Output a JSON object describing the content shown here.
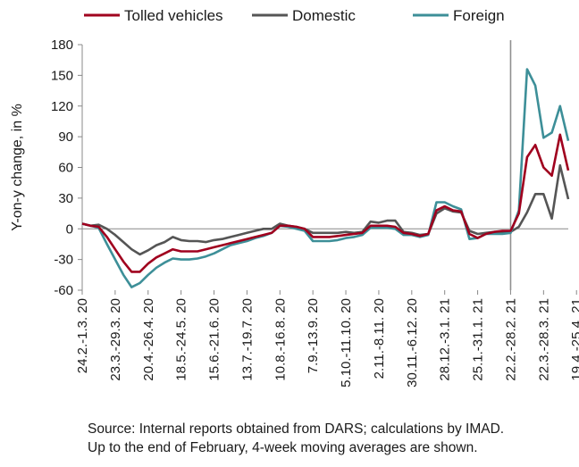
{
  "chart_data": {
    "type": "line",
    "title": "",
    "ylabel": "Y-on-y change, in %",
    "xlabel": "",
    "ylim": [
      -60,
      180
    ],
    "yticks": [
      -60,
      -30,
      0,
      30,
      60,
      90,
      120,
      150,
      180
    ],
    "grid": false,
    "legend_position": "top",
    "x_tick_labels": [
      "24.2.-1.3. 20",
      "23.3.-29.3. 20",
      "20.4.-26.4. 20",
      "18.5.-24.5. 20",
      "15.6.-21.6. 20",
      "13.7.-19.7. 20",
      "10.8.-16.8. 20",
      "7.9.-13.9. 20",
      "5.10.-11.10. 20",
      "2.11.-8.11. 20",
      "30.11.-6.12. 20",
      "28.12.-3.1. 21",
      "25.1.-31.1. 21",
      "22.2.-28.2. 21",
      "22.3.-28.3. 21",
      "19.4.-25.4. 21"
    ],
    "vline_at_week": 52,
    "series": [
      {
        "name": "Tolled vehicles",
        "color": "#a0001e",
        "values": [
          5,
          3,
          2,
          -8,
          -20,
          -32,
          -42,
          -42,
          -34,
          -28,
          -24,
          -20,
          -22,
          -22,
          -22,
          -20,
          -18,
          -16,
          -14,
          -12,
          -10,
          -8,
          -6,
          -4,
          3,
          3,
          2,
          0,
          -8,
          -8,
          -8,
          -7,
          -6,
          -5,
          -4,
          3,
          3,
          3,
          2,
          -4,
          -5,
          -7,
          -5,
          18,
          22,
          18,
          17,
          -5,
          -9,
          -5,
          -3,
          -2,
          -2,
          15,
          70,
          82,
          60,
          52,
          92,
          57
        ]
      },
      {
        "name": "Domestic",
        "color": "#555555",
        "values": [
          5,
          3,
          4,
          0,
          -6,
          -13,
          -20,
          -25,
          -21,
          -16,
          -13,
          -8,
          -11,
          -12,
          -12,
          -13,
          -11,
          -10,
          -8,
          -6,
          -4,
          -2,
          0,
          0,
          5,
          3,
          2,
          0,
          -4,
          -4,
          -4,
          -4,
          -3,
          -4,
          -3,
          7,
          6,
          8,
          8,
          -3,
          -4,
          -6,
          -5,
          15,
          20,
          17,
          16,
          -2,
          -5,
          -4,
          -3,
          -3,
          -3,
          2,
          16,
          34,
          34,
          10,
          62,
          29
        ]
      },
      {
        "name": "Foreign",
        "color": "#3d8f98",
        "values": [
          5,
          3,
          1,
          -15,
          -30,
          -45,
          -57,
          -53,
          -45,
          -38,
          -33,
          -29,
          -30,
          -30,
          -29,
          -27,
          -24,
          -20,
          -16,
          -14,
          -12,
          -9,
          -7,
          -4,
          3,
          2,
          0,
          -2,
          -12,
          -12,
          -12,
          -11,
          -9,
          -8,
          -6,
          1,
          1,
          1,
          0,
          -6,
          -6,
          -8,
          -6,
          26,
          26,
          22,
          19,
          -10,
          -9,
          -5,
          -5,
          -5,
          -4,
          18,
          156,
          140,
          89,
          94,
          120,
          86
        ]
      }
    ]
  },
  "footer": {
    "source_line1": "Source: Internal reports obtained from DARS; calculations by IMAD.",
    "source_line2": "Up to the end of February, 4-week moving averages are shown."
  }
}
